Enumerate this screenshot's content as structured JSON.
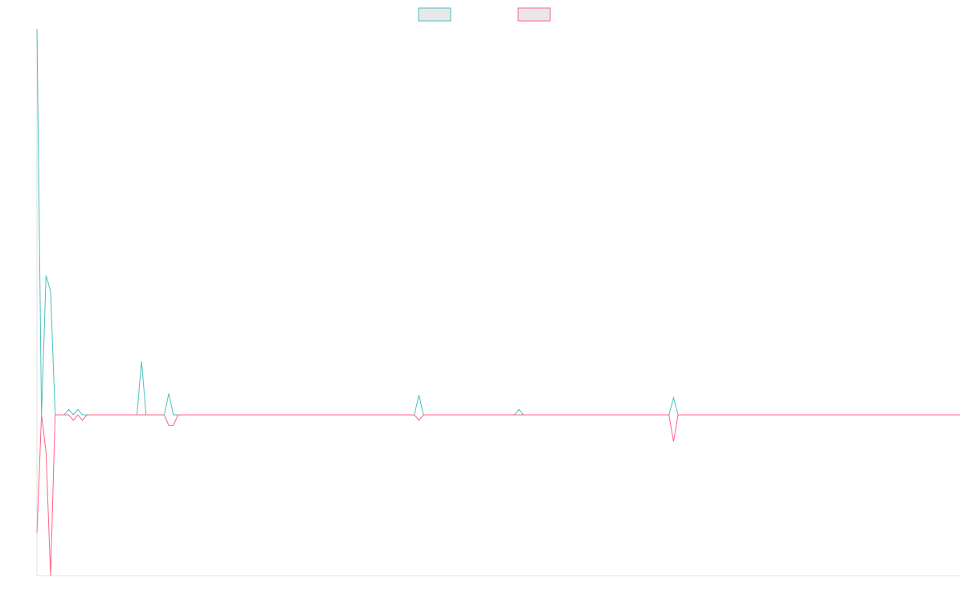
{
  "chart_data": {
    "type": "line",
    "title": "",
    "xlabel": "",
    "ylabel": "",
    "legend": {
      "placement": "top-center",
      "entries": [
        {
          "name": "",
          "color": "#4bc0c0",
          "fill": "#e8e8e8"
        },
        {
          "name": "",
          "color": "#ff6384",
          "fill": "#e8e8e8"
        }
      ]
    },
    "grid": false,
    "x": [
      0,
      1,
      2,
      3,
      4,
      5,
      6,
      7,
      8,
      9,
      10,
      11,
      12,
      13,
      14,
      15,
      16,
      17,
      18,
      19,
      20,
      21,
      22,
      23,
      24,
      25,
      26,
      27,
      28,
      29,
      30,
      31,
      32,
      33,
      34,
      35,
      36,
      37,
      38,
      39,
      40,
      41,
      42,
      43,
      44,
      45,
      46,
      47,
      48,
      49,
      50,
      51,
      52,
      53,
      54,
      55,
      56,
      57,
      58,
      59,
      60,
      61,
      62,
      63,
      64,
      65,
      66,
      67,
      68,
      69,
      70,
      71,
      72,
      73,
      74,
      75,
      76,
      77,
      78,
      79,
      80,
      81,
      82,
      83,
      84,
      85,
      86,
      87,
      88,
      89,
      90,
      91,
      92,
      93,
      94,
      95,
      96,
      97,
      98,
      99,
      100,
      101,
      102,
      103,
      104,
      105,
      106,
      107,
      108,
      109,
      110,
      111,
      112,
      113,
      114,
      115,
      116,
      117,
      118,
      119,
      120,
      121,
      122,
      123,
      124,
      125,
      126,
      127,
      128,
      129,
      130,
      131,
      132,
      133,
      134,
      135,
      136,
      137,
      138,
      139,
      140,
      141,
      142,
      143,
      144,
      145,
      146,
      147,
      148,
      149,
      150,
      151,
      152,
      153,
      154,
      155,
      156,
      157,
      158,
      159,
      160,
      161,
      162,
      163,
      164,
      165,
      166,
      167,
      168,
      169,
      170,
      171,
      172,
      173,
      174,
      175,
      176,
      177,
      178,
      179,
      180,
      181,
      182,
      183,
      184,
      185,
      186,
      187,
      188,
      189,
      190,
      191,
      192,
      193,
      194,
      195,
      196,
      197,
      198,
      199,
      200,
      201,
      202,
      203
    ],
    "ylim": [
      -30,
      72
    ],
    "series": [
      {
        "color": "#4bc0c0",
        "values": [
          72,
          0,
          26,
          23,
          0,
          0,
          0,
          1,
          0,
          1,
          0,
          0,
          0,
          0,
          0,
          0,
          0,
          0,
          0,
          0,
          0,
          0,
          0,
          10,
          0,
          0,
          0,
          0,
          0,
          4,
          0,
          0,
          0,
          0,
          0,
          0,
          0,
          0,
          0,
          0,
          0,
          0,
          0,
          0,
          0,
          0,
          0,
          0,
          0,
          0,
          0,
          0,
          0,
          0,
          0,
          0,
          0,
          0,
          0,
          0,
          0,
          0,
          0,
          0,
          0,
          0,
          0,
          0,
          0,
          0,
          0,
          0,
          0,
          0,
          0,
          0,
          0,
          0,
          0,
          0,
          0,
          0,
          0,
          0,
          3.7,
          0,
          0,
          0,
          0,
          0,
          0,
          0,
          0,
          0,
          0,
          0,
          0,
          0,
          0,
          0,
          0,
          0,
          0,
          0,
          0,
          0,
          1,
          0,
          0,
          0,
          0,
          0,
          0,
          0,
          0,
          0,
          0,
          0,
          0,
          0,
          0,
          0,
          0,
          0,
          0,
          0,
          0,
          0,
          0,
          0,
          0,
          0,
          0,
          0,
          0,
          0,
          0,
          0,
          0,
          0,
          3.2,
          0,
          0,
          0,
          0,
          0,
          0,
          0,
          0,
          0,
          0,
          0,
          0,
          0,
          0,
          0,
          0,
          0,
          0,
          0,
          0,
          0,
          0,
          0,
          0,
          0,
          0,
          0,
          0,
          0,
          0,
          0,
          0,
          0,
          0,
          0,
          0,
          0,
          0,
          0,
          0,
          0,
          0,
          0,
          0,
          0,
          0,
          0,
          0,
          0,
          0,
          0,
          0,
          0,
          0,
          0,
          0,
          0,
          0,
          0,
          0,
          0,
          0,
          0
        ]
      },
      {
        "color": "#ff6384",
        "values": [
          -22,
          0,
          -7,
          -30,
          0,
          0,
          0,
          0,
          -1,
          0,
          -1,
          0,
          0,
          0,
          0,
          0,
          0,
          0,
          0,
          0,
          0,
          0,
          0,
          0,
          0,
          0,
          0,
          0,
          0,
          -2,
          -2,
          0,
          0,
          0,
          0,
          0,
          0,
          0,
          0,
          0,
          0,
          0,
          0,
          0,
          0,
          0,
          0,
          0,
          0,
          0,
          0,
          0,
          0,
          0,
          0,
          0,
          0,
          0,
          0,
          0,
          0,
          0,
          0,
          0,
          0,
          0,
          0,
          0,
          0,
          0,
          0,
          0,
          0,
          0,
          0,
          0,
          0,
          0,
          0,
          0,
          0,
          0,
          0,
          0,
          -1,
          0,
          0,
          0,
          0,
          0,
          0,
          0,
          0,
          0,
          0,
          0,
          0,
          0,
          0,
          0,
          0,
          0,
          0,
          0,
          0,
          0,
          0,
          0,
          0,
          0,
          0,
          0,
          0,
          0,
          0,
          0,
          0,
          0,
          0,
          0,
          0,
          0,
          0,
          0,
          0,
          0,
          0,
          0,
          0,
          0,
          0,
          0,
          0,
          0,
          0,
          0,
          0,
          0,
          0,
          0,
          -5,
          0,
          0,
          0,
          0,
          0,
          0,
          0,
          0,
          0,
          0,
          0,
          0,
          0,
          0,
          0,
          0,
          0,
          0,
          0,
          0,
          0,
          0,
          0,
          0,
          0,
          0,
          0,
          0,
          0,
          0,
          0,
          0,
          0,
          0,
          0,
          0,
          0,
          0,
          0,
          0,
          0,
          0,
          0,
          0,
          0,
          0,
          0,
          0,
          0,
          0,
          0,
          0,
          0,
          0,
          0,
          0,
          0,
          0,
          0,
          0,
          0,
          0,
          0
        ]
      }
    ]
  }
}
